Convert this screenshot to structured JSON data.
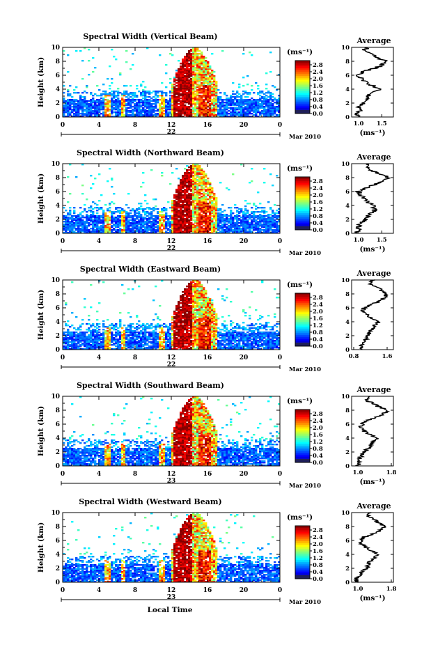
{
  "chart_data": [
    {
      "type": "heatmap",
      "title": "Spectral Width (Vertical Beam)",
      "ylabel": "Height (km)",
      "ylim": [
        0,
        10
      ],
      "yticks": [
        "0",
        "2",
        "4",
        "6",
        "8",
        "10"
      ],
      "xticks": [
        "0",
        "4",
        "8",
        "12",
        "16",
        "20",
        "0"
      ],
      "xlim": [
        0,
        24
      ],
      "day_label": "22",
      "month_label": "Mar 2010",
      "colorbar": {
        "unit": "(ms⁻¹)",
        "ticks": [
          "2.8",
          "2.4",
          "2.0",
          "1.6",
          "1.2",
          "0.8",
          "0.4",
          "0.0"
        ],
        "range": [
          0,
          2.8
        ]
      },
      "profile": {
        "title": "Average",
        "xlabel": "(ms⁻¹)",
        "xticks": [
          "1.0",
          "1.5"
        ],
        "xlim": [
          0.85,
          1.75
        ],
        "heights": [
          0,
          0.5,
          1,
          1.5,
          2,
          2.5,
          3,
          3.5,
          4,
          4.5,
          5,
          5.5,
          6,
          6.5,
          7,
          7.5,
          8,
          8.5,
          9,
          9.5,
          10
        ],
        "values": [
          1.0,
          0.95,
          1.05,
          1.0,
          1.1,
          1.15,
          1.2,
          1.3,
          1.45,
          1.3,
          1.15,
          1.05,
          1.0,
          1.1,
          1.35,
          1.5,
          1.6,
          1.4,
          1.3,
          1.1,
          1.2
        ]
      }
    },
    {
      "type": "heatmap",
      "title": "Spectral Width (Northward Beam)",
      "ylabel": "Height (km)",
      "ylim": [
        0,
        10
      ],
      "yticks": [
        "0",
        "2",
        "4",
        "6",
        "8",
        "10"
      ],
      "xticks": [
        "0",
        "4",
        "8",
        "12",
        "16",
        "20",
        "0"
      ],
      "xlim": [
        0,
        24
      ],
      "day_label": "22",
      "month_label": "Mar 2010",
      "colorbar": {
        "unit": "(ms⁻¹)",
        "ticks": [
          "2.8",
          "2.4",
          "2.0",
          "1.6",
          "1.2",
          "0.8",
          "0.4",
          "0.0"
        ],
        "range": [
          0,
          2.8
        ]
      },
      "profile": {
        "title": "Average",
        "xlabel": "(ms⁻¹)",
        "xticks": [
          "1.0",
          "1.5"
        ],
        "xlim": [
          0.85,
          1.75
        ],
        "heights": [
          0,
          0.5,
          1,
          1.5,
          2,
          2.5,
          3,
          3.5,
          4,
          4.5,
          5,
          5.5,
          6,
          6.5,
          7,
          7.5,
          8,
          8.5,
          9,
          9.5,
          10
        ],
        "values": [
          0.95,
          1.0,
          1.0,
          1.05,
          1.15,
          1.2,
          1.3,
          1.35,
          1.3,
          1.2,
          1.1,
          1.05,
          1.0,
          1.15,
          1.35,
          1.5,
          1.65,
          1.45,
          1.3,
          1.15,
          1.2
        ]
      }
    },
    {
      "type": "heatmap",
      "title": "Spectral Width (Eastward Beam)",
      "ylabel": "Height (km)",
      "ylim": [
        0,
        10
      ],
      "yticks": [
        "0",
        "2",
        "4",
        "6",
        "8",
        "10"
      ],
      "xticks": [
        "0",
        "4",
        "8",
        "12",
        "16",
        "20",
        "0"
      ],
      "xlim": [
        0,
        24
      ],
      "day_label": "22",
      "month_label": "Mar 2010",
      "colorbar": {
        "unit": "(ms⁻¹)",
        "ticks": [
          "2.8",
          "2.4",
          "2.0",
          "1.6",
          "1.2",
          "0.8",
          "0.4",
          "0.0"
        ],
        "range": [
          0,
          2.8
        ]
      },
      "profile": {
        "title": "Average",
        "xlabel": "",
        "xticks": [
          "0.8",
          "1.6"
        ],
        "xlim": [
          0.75,
          1.75
        ],
        "heights": [
          0,
          0.5,
          1,
          1.5,
          2,
          2.5,
          3,
          3.5,
          4,
          4.5,
          5,
          5.5,
          6,
          6.5,
          7,
          7.5,
          8,
          8.5,
          9,
          9.5,
          10
        ],
        "values": [
          1.0,
          0.95,
          1.05,
          1.1,
          1.1,
          1.2,
          1.25,
          1.3,
          1.4,
          1.25,
          1.1,
          1.0,
          1.05,
          1.2,
          1.45,
          1.55,
          1.6,
          1.45,
          1.35,
          1.2,
          1.25
        ]
      }
    },
    {
      "type": "heatmap",
      "title": "Spectral Width (Southward Beam)",
      "ylabel": "Height (km)",
      "ylim": [
        0,
        10
      ],
      "yticks": [
        "0",
        "2",
        "4",
        "6",
        "8",
        "10"
      ],
      "xticks": [
        "0",
        "4",
        "8",
        "12",
        "16",
        "20",
        "0"
      ],
      "xlim": [
        0,
        24
      ],
      "day_label": "23",
      "month_label": "Mar 2010",
      "colorbar": {
        "unit": "(ms⁻¹)",
        "ticks": [
          "2.8",
          "2.4",
          "2.0",
          "1.6",
          "1.2",
          "0.8",
          "0.4",
          "0.0"
        ],
        "range": [
          0,
          2.8
        ]
      },
      "profile": {
        "title": "Average",
        "xlabel": "(ms⁻¹)",
        "xticks": [
          "1.0",
          "1.8"
        ],
        "xlim": [
          0.85,
          1.85
        ],
        "heights": [
          0,
          0.5,
          1,
          1.5,
          2,
          2.5,
          3,
          3.5,
          4,
          4.5,
          5,
          5.5,
          6,
          6.5,
          7,
          7.5,
          8,
          8.5,
          9,
          9.5,
          10
        ],
        "values": [
          1.0,
          1.05,
          1.0,
          1.1,
          1.15,
          1.25,
          1.3,
          1.4,
          1.45,
          1.3,
          1.15,
          1.05,
          1.1,
          1.2,
          1.45,
          1.6,
          1.7,
          1.5,
          1.35,
          1.2,
          1.3
        ]
      }
    },
    {
      "type": "heatmap",
      "title": "Spectral Width (Westward Beam)",
      "ylabel": "Height (km)",
      "ylim": [
        0,
        10
      ],
      "yticks": [
        "0",
        "2",
        "4",
        "6",
        "8",
        "10"
      ],
      "xticks": [
        "0",
        "4",
        "8",
        "12",
        "16",
        "20",
        "0"
      ],
      "xlim": [
        0,
        24
      ],
      "day_label": "23",
      "month_label": "Mar 2010",
      "colorbar": {
        "unit": "(ms⁻¹)",
        "ticks": [
          "2.8",
          "2.4",
          "2.0",
          "1.6",
          "1.2",
          "0.8",
          "0.4",
          "0.0"
        ],
        "range": [
          0,
          2.8
        ]
      },
      "profile": {
        "title": "Average",
        "xlabel": "(ms⁻¹)",
        "xticks": [
          "1.0",
          "1.8"
        ],
        "xlim": [
          0.85,
          1.85
        ],
        "heights": [
          0,
          0.5,
          1,
          1.5,
          2,
          2.5,
          3,
          3.5,
          4,
          4.5,
          5,
          5.5,
          6,
          6.5,
          7,
          7.5,
          8,
          8.5,
          9,
          9.5,
          10
        ],
        "values": [
          1.0,
          0.95,
          1.05,
          1.1,
          1.2,
          1.25,
          1.3,
          1.4,
          1.45,
          1.35,
          1.2,
          1.1,
          1.05,
          1.15,
          1.4,
          1.55,
          1.65,
          1.5,
          1.4,
          1.25,
          1.3
        ]
      }
    }
  ],
  "bottom_xlabel": "Local Time"
}
